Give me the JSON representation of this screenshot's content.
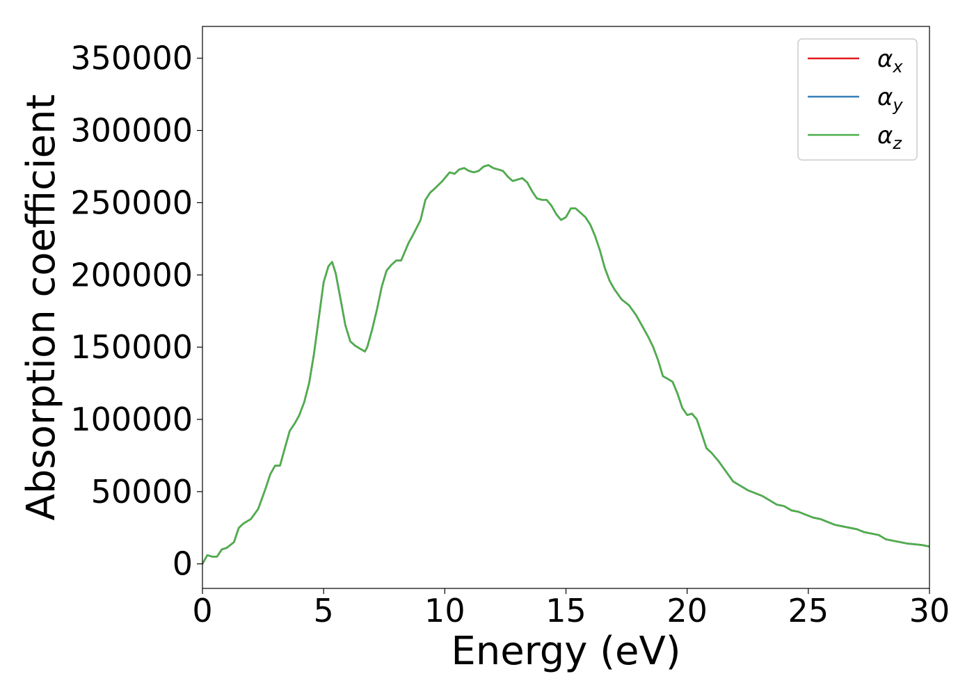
{
  "chart_data": {
    "type": "line",
    "title": "",
    "xlabel": "Energy (eV)",
    "ylabel": "Absorption coefficient",
    "xlim": [
      0,
      30
    ],
    "ylim": [
      -17000,
      372000
    ],
    "xticks": [
      0,
      5,
      10,
      15,
      20,
      25,
      30
    ],
    "yticks": [
      0,
      50000,
      100000,
      150000,
      200000,
      250000,
      300000,
      350000
    ],
    "grid": false,
    "legend_position": "top-right",
    "x": [
      0,
      0.2,
      0.4,
      0.6,
      0.8,
      1.0,
      1.3,
      1.5,
      1.7,
      2.0,
      2.3,
      2.6,
      2.8,
      3.0,
      3.2,
      3.4,
      3.6,
      3.8,
      4.0,
      4.2,
      4.4,
      4.6,
      4.8,
      5.0,
      5.2,
      5.35,
      5.5,
      5.7,
      5.9,
      6.1,
      6.3,
      6.5,
      6.7,
      6.8,
      7.0,
      7.2,
      7.4,
      7.6,
      7.8,
      8.0,
      8.2,
      8.5,
      8.7,
      9.0,
      9.2,
      9.4,
      9.6,
      9.9,
      10.2,
      10.4,
      10.6,
      10.8,
      11.0,
      11.2,
      11.4,
      11.6,
      11.8,
      12.0,
      12.2,
      12.4,
      12.6,
      12.8,
      13.0,
      13.2,
      13.4,
      13.6,
      13.8,
      14.0,
      14.2,
      14.4,
      14.6,
      14.8,
      15.0,
      15.2,
      15.4,
      15.6,
      15.8,
      16.0,
      16.2,
      16.4,
      16.6,
      16.8,
      17.0,
      17.3,
      17.6,
      17.9,
      18.2,
      18.4,
      18.6,
      18.8,
      19.0,
      19.2,
      19.4,
      19.6,
      19.8,
      20.0,
      20.2,
      20.4,
      20.6,
      20.8,
      21.0,
      21.3,
      21.6,
      21.9,
      22.2,
      22.5,
      22.8,
      23.1,
      23.4,
      23.7,
      24.0,
      24.3,
      24.6,
      24.9,
      25.2,
      25.5,
      25.8,
      26.1,
      26.4,
      26.7,
      27.0,
      27.3,
      27.6,
      27.9,
      28.2,
      28.5,
      28.8,
      29.1,
      29.4,
      29.7,
      30.0
    ],
    "series": [
      {
        "name": "α_x",
        "label_main": "α",
        "label_sub": "x",
        "color": "#e41a1c",
        "y": [
          0,
          6000,
          5000,
          5000,
          10000,
          11000,
          15000,
          25000,
          28000,
          31000,
          38000,
          52000,
          62000,
          68000,
          68000,
          80000,
          92000,
          97000,
          103000,
          112000,
          125000,
          145000,
          170000,
          195000,
          206000,
          209000,
          201000,
          183000,
          165000,
          154000,
          151000,
          149000,
          147000,
          150000,
          162000,
          176000,
          192000,
          203000,
          207000,
          210000,
          210000,
          222000,
          228000,
          238000,
          252000,
          257000,
          260000,
          265000,
          271000,
          270000,
          273000,
          274000,
          272000,
          271000,
          272000,
          275000,
          276000,
          274000,
          273000,
          272000,
          268000,
          265000,
          266000,
          267000,
          264000,
          258000,
          253000,
          252000,
          252000,
          248000,
          242000,
          238000,
          240000,
          246000,
          246000,
          243000,
          240000,
          235000,
          227000,
          217000,
          205000,
          196000,
          190000,
          183000,
          179000,
          172000,
          163000,
          157000,
          150000,
          141000,
          130000,
          128000,
          126000,
          118000,
          108000,
          103000,
          104000,
          100000,
          90000,
          80000,
          77000,
          71000,
          64000,
          57000,
          54000,
          51000,
          49000,
          47000,
          44000,
          41000,
          40000,
          37000,
          36000,
          34000,
          32000,
          31000,
          29000,
          27000,
          26000,
          25000,
          24000,
          22000,
          21000,
          20000,
          17000,
          16000,
          15000,
          14000,
          13500,
          13000,
          12000
        ]
      },
      {
        "name": "α_y",
        "label_main": "α",
        "label_sub": "y",
        "color": "#377eb8",
        "y": [
          0,
          6000,
          5000,
          5000,
          10000,
          11000,
          15000,
          25000,
          28000,
          31000,
          38000,
          52000,
          62000,
          68000,
          68000,
          80000,
          92000,
          97000,
          103000,
          112000,
          125000,
          145000,
          170000,
          195000,
          206000,
          209000,
          201000,
          183000,
          165000,
          154000,
          151000,
          149000,
          147000,
          150000,
          162000,
          176000,
          192000,
          203000,
          207000,
          210000,
          210000,
          222000,
          228000,
          238000,
          252000,
          257000,
          260000,
          265000,
          271000,
          270000,
          273000,
          274000,
          272000,
          271000,
          272000,
          275000,
          276000,
          274000,
          273000,
          272000,
          268000,
          265000,
          266000,
          267000,
          264000,
          258000,
          253000,
          252000,
          252000,
          248000,
          242000,
          238000,
          240000,
          246000,
          246000,
          243000,
          240000,
          235000,
          227000,
          217000,
          205000,
          196000,
          190000,
          183000,
          179000,
          172000,
          163000,
          157000,
          150000,
          141000,
          130000,
          128000,
          126000,
          118000,
          108000,
          103000,
          104000,
          100000,
          90000,
          80000,
          77000,
          71000,
          64000,
          57000,
          54000,
          51000,
          49000,
          47000,
          44000,
          41000,
          40000,
          37000,
          36000,
          34000,
          32000,
          31000,
          29000,
          27000,
          26000,
          25000,
          24000,
          22000,
          21000,
          20000,
          17000,
          16000,
          15000,
          14000,
          13500,
          13000,
          12000
        ]
      },
      {
        "name": "α_z",
        "label_main": "α",
        "label_sub": "z",
        "color": "#4daf4a",
        "y": [
          0,
          6000,
          5000,
          5000,
          10000,
          11000,
          15000,
          25000,
          28000,
          31000,
          38000,
          52000,
          62000,
          68000,
          68000,
          80000,
          92000,
          97000,
          103000,
          112000,
          125000,
          145000,
          170000,
          195000,
          206000,
          209000,
          201000,
          183000,
          165000,
          154000,
          151000,
          149000,
          147000,
          150000,
          162000,
          176000,
          192000,
          203000,
          207000,
          210000,
          210000,
          222000,
          228000,
          238000,
          252000,
          257000,
          260000,
          265000,
          271000,
          270000,
          273000,
          274000,
          272000,
          271000,
          272000,
          275000,
          276000,
          274000,
          273000,
          272000,
          268000,
          265000,
          266000,
          267000,
          264000,
          258000,
          253000,
          252000,
          252000,
          248000,
          242000,
          238000,
          240000,
          246000,
          246000,
          243000,
          240000,
          235000,
          227000,
          217000,
          205000,
          196000,
          190000,
          183000,
          179000,
          172000,
          163000,
          157000,
          150000,
          141000,
          130000,
          128000,
          126000,
          118000,
          108000,
          103000,
          104000,
          100000,
          90000,
          80000,
          77000,
          71000,
          64000,
          57000,
          54000,
          51000,
          49000,
          47000,
          44000,
          41000,
          40000,
          37000,
          36000,
          34000,
          32000,
          31000,
          29000,
          27000,
          26000,
          25000,
          24000,
          22000,
          21000,
          20000,
          17000,
          16000,
          15000,
          14000,
          13500,
          13000,
          12000
        ]
      }
    ]
  }
}
